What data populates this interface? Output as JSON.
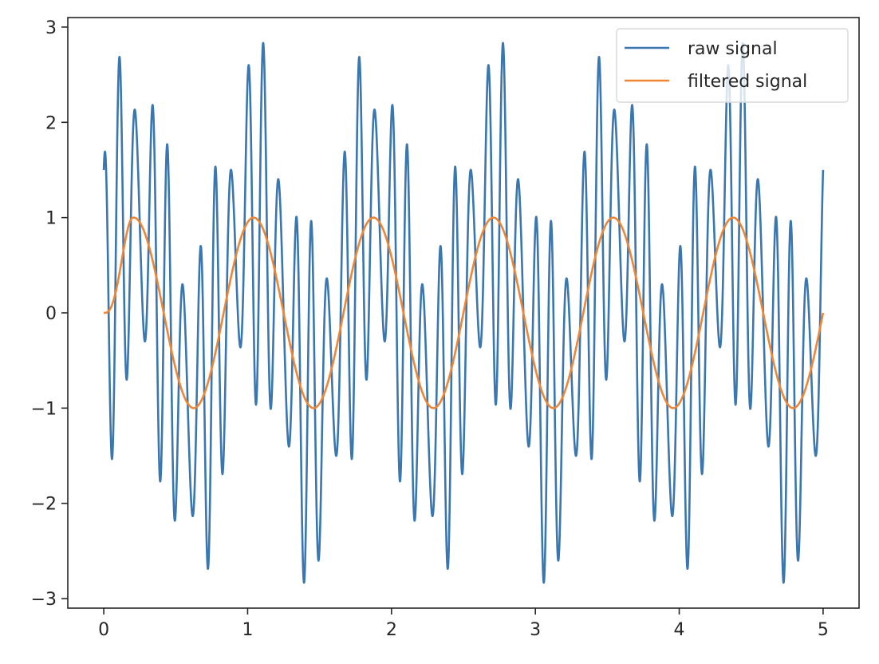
{
  "chart_data": {
    "type": "line",
    "title": "",
    "xlabel": "",
    "ylabel": "",
    "xlim": [
      -0.25,
      5.25
    ],
    "ylim": [
      -3.1,
      3.1
    ],
    "xticks": [
      0,
      1,
      2,
      3,
      4,
      5
    ],
    "yticks": [
      -3,
      -2,
      -1,
      0,
      1,
      2,
      3
    ],
    "xtick_labels": [
      "0",
      "1",
      "2",
      "3",
      "4",
      "5"
    ],
    "ytick_labels": [
      "−3",
      "−2",
      "−1",
      "0",
      "1",
      "2",
      "3"
    ],
    "grid": false,
    "legend_position": "top-right",
    "x_range": [
      0,
      5
    ],
    "series": [
      {
        "name": "raw signal",
        "color": "#3a76af",
        "formula": "sin(2*pi*1.2*x) + 1.5*cos(2*pi*9*x) + 0.5*sin(2*pi*12*x)"
      },
      {
        "name": "filtered signal",
        "color": "#ef8636",
        "formula": "sin(2*pi*1.2*x), with filter start-up transient from 0 over the first ~0.2"
      }
    ]
  }
}
